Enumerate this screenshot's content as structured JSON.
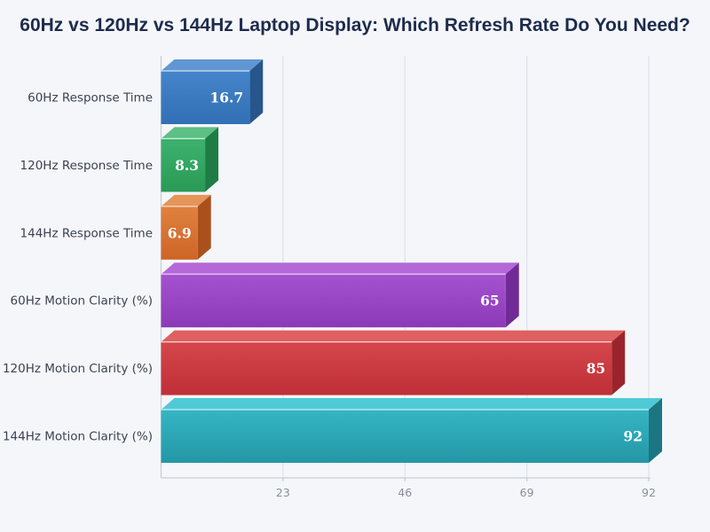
{
  "title": "60Hz vs 120Hz vs 144Hz Laptop Display: Which Refresh Rate Do You Need?",
  "chart_data": {
    "type": "bar",
    "orientation": "horizontal",
    "style": "3d-horizontal-bars",
    "title": "60Hz vs 120Hz vs 144Hz Laptop Display: Which Refresh Rate Do You Need?",
    "categories": [
      "60Hz Response Time",
      "120Hz Response Time",
      "144Hz Response Time",
      "60Hz Motion Clarity (%)",
      "120Hz Motion Clarity (%)",
      "144Hz Motion Clarity (%)"
    ],
    "values": [
      16.7,
      8.3,
      6.9,
      65,
      85,
      92
    ],
    "value_labels": [
      "16.7",
      "8.3",
      "6.9",
      "65",
      "85",
      "92"
    ],
    "xticks": [
      "23",
      "46",
      "69",
      "92"
    ],
    "xtick_values": [
      23,
      46,
      69,
      92
    ],
    "xlim": [
      0,
      92.4
    ],
    "grid": true,
    "legend": false,
    "colors": {
      "background": "#f4f6f9",
      "title": "#1d2b4c",
      "category_label": "#3d4254",
      "tick_label": "#878e9b",
      "gridline": "#dfe4ec",
      "spine": "#c6ccd6",
      "value_label": "#ffffff"
    },
    "bars": [
      {
        "label": "60Hz Response Time",
        "value": 16.7,
        "value_label": "16.7",
        "front": "#326fb5",
        "front_light": "#4585ca",
        "top": "#6097d3",
        "side": "#27568d"
      },
      {
        "label": "120Hz Response Time",
        "value": 8.3,
        "value_label": "8.3",
        "front": "#2a9a56",
        "front_light": "#3cb26e",
        "top": "#5dc084",
        "side": "#1f7c44"
      },
      {
        "label": "144Hz Response Time",
        "value": 6.9,
        "value_label": "6.9",
        "front": "#cd6527",
        "front_light": "#e0813f",
        "top": "#e59559",
        "side": "#a9501c"
      },
      {
        "label": "60Hz Motion Clarity (%)",
        "value": 65,
        "value_label": "65",
        "front": "#8c39b8",
        "front_light": "#a453cf",
        "top": "#b569d9",
        "side": "#712b96"
      },
      {
        "label": "120Hz Motion Clarity (%)",
        "value": 85,
        "value_label": "85",
        "front": "#c02e37",
        "front_light": "#d4474b",
        "top": "#de6061",
        "side": "#9b242c"
      },
      {
        "label": "144Hz Motion Clarity (%)",
        "value": 92,
        "value_label": "92",
        "front": "#2497a6",
        "front_light": "#35b5c3",
        "top": "#4ecad6",
        "side": "#1b7682"
      }
    ]
  }
}
